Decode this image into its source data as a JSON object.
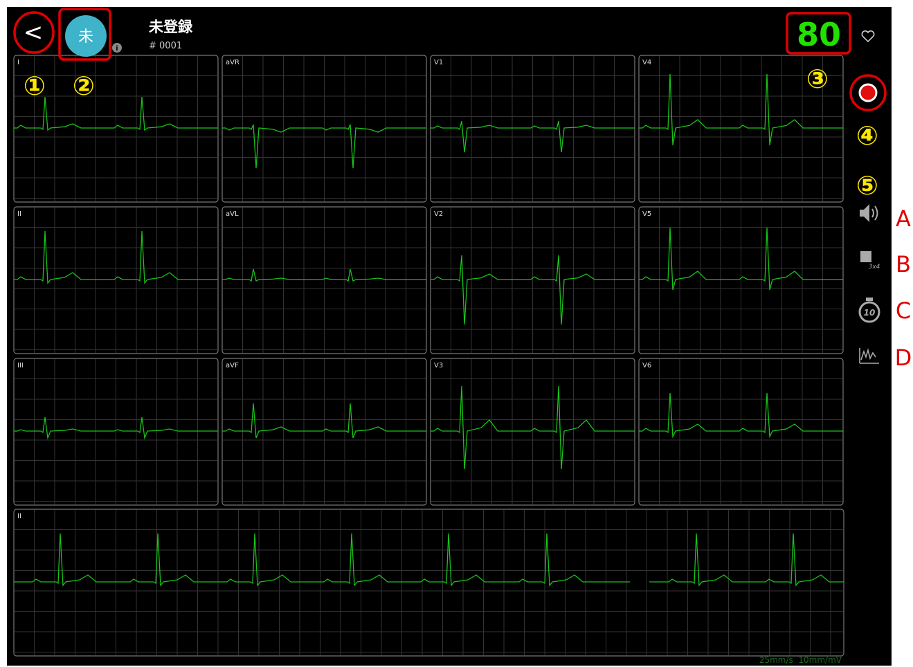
{
  "header": {
    "back": "<",
    "avatar": "未",
    "patient_name": "未登録",
    "patient_id": "# 0001",
    "heart_rate": "80"
  },
  "leads": [
    "I",
    "aVR",
    "V1",
    "V4",
    "II",
    "aVL",
    "V2",
    "V5",
    "III",
    "aVF",
    "V3",
    "V6"
  ],
  "rhythm_lead": "II",
  "footer": "25mm/s  10mm/mV",
  "icons": {
    "layout": "3x4",
    "timer": "10"
  },
  "annotations": [
    "①",
    "②",
    "③",
    "④",
    "⑤"
  ],
  "side_labels": [
    "A",
    "B",
    "C",
    "D"
  ]
}
